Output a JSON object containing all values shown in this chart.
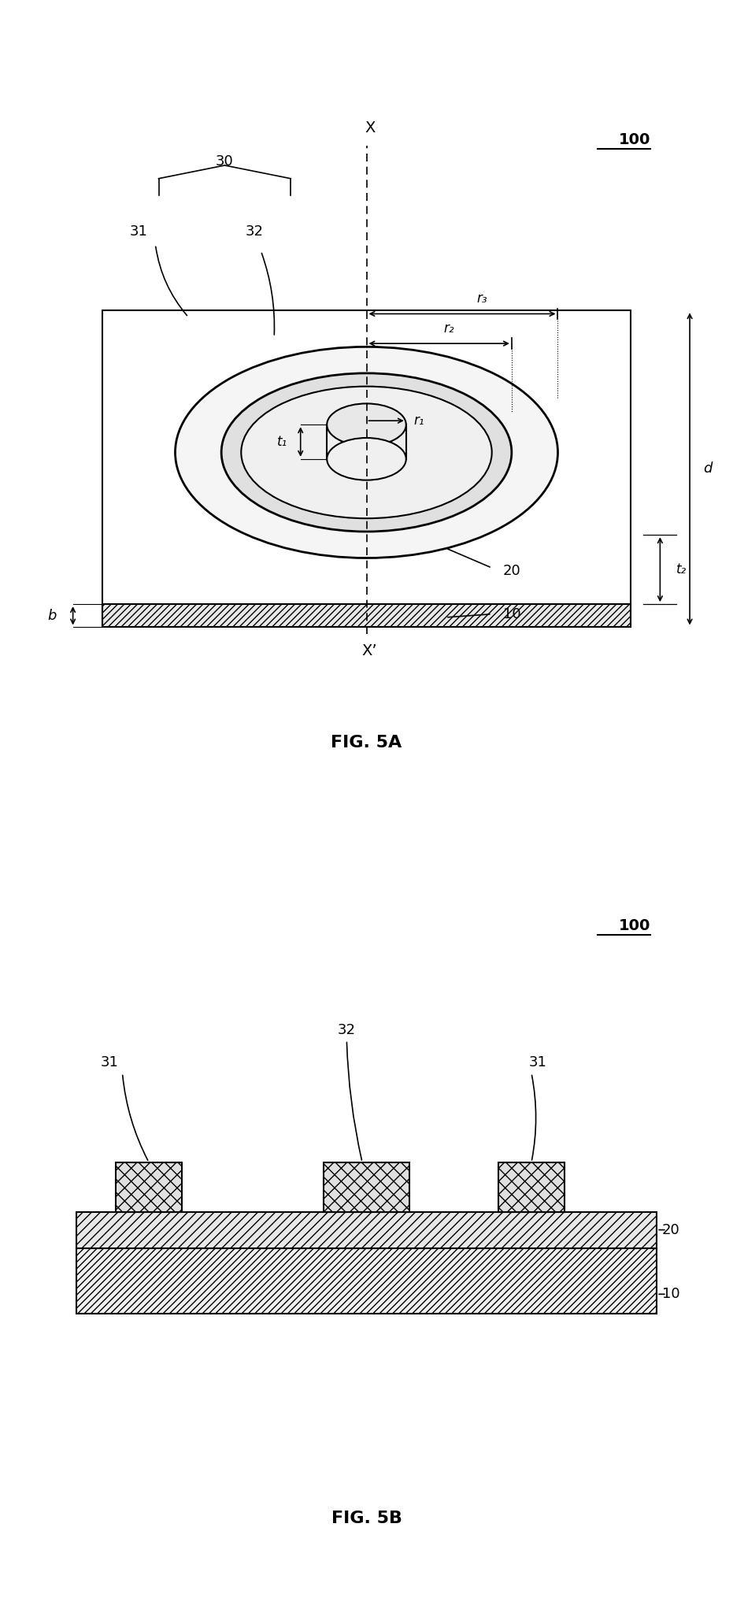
{
  "bg_color": "#ffffff",
  "line_color": "#000000",
  "fig_width": 9.31,
  "fig_height": 20.57,
  "fig5a_title": "FIG. 5A",
  "fig5b_title": "FIG. 5B",
  "label_100_1": "100",
  "label_100_2": "100",
  "label_10": "10",
  "label_20": "20",
  "label_30": "30",
  "label_31a": "31",
  "label_31b": "31",
  "label_32": "32",
  "label_r1": "r₁",
  "label_r2": "r₂",
  "label_r3": "r₃",
  "label_t1": "t₁",
  "label_t2": "t₂",
  "label_b": "b",
  "label_d": "d",
  "label_X": "X",
  "label_Xp": "X’"
}
